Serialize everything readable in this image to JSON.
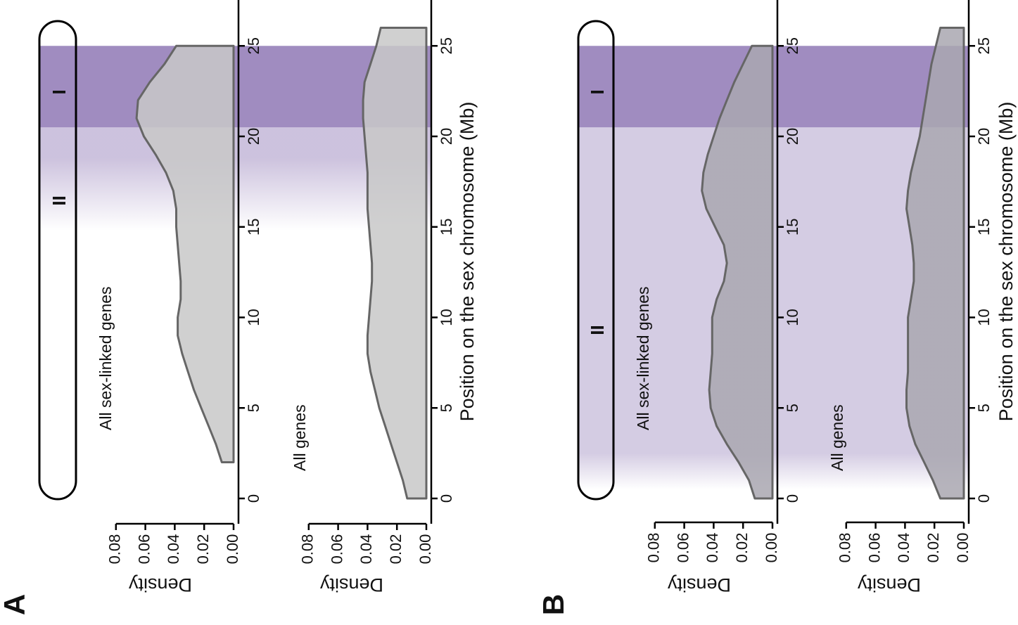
{
  "panels": [
    {
      "id": "A",
      "letter": "A",
      "strata": [
        {
          "label": "I",
          "start": 20.5,
          "end": 25,
          "color": "#8f78b5",
          "opacity": 0.85,
          "fade_start": 20.5,
          "fade_end": 20.5
        },
        {
          "label": "II",
          "start": 14.8,
          "end": 20.5,
          "color": "#8f78b5",
          "opacity": 0.45,
          "fade_start": 14.8,
          "fade_end": 18.8
        }
      ],
      "subplots": [
        {
          "label": "All sex-linked genes",
          "ylabel": "Density",
          "density": [
            [
              2,
              0.008
            ],
            [
              3,
              0.012
            ],
            [
              4,
              0.017
            ],
            [
              5,
              0.022
            ],
            [
              6,
              0.027
            ],
            [
              7,
              0.031
            ],
            [
              8,
              0.035
            ],
            [
              9,
              0.038
            ],
            [
              10,
              0.038
            ],
            [
              11,
              0.036
            ],
            [
              12,
              0.036
            ],
            [
              13,
              0.037
            ],
            [
              14,
              0.038
            ],
            [
              15,
              0.039
            ],
            [
              16,
              0.039
            ],
            [
              17,
              0.041
            ],
            [
              18,
              0.046
            ],
            [
              19,
              0.053
            ],
            [
              20,
              0.061
            ],
            [
              21,
              0.066
            ],
            [
              22,
              0.065
            ],
            [
              23,
              0.057
            ],
            [
              24,
              0.047
            ],
            [
              25,
              0.039
            ]
          ]
        },
        {
          "label": "All genes",
          "ylabel": "Density",
          "density": [
            [
              0,
              0.013
            ],
            [
              1,
              0.016
            ],
            [
              2,
              0.02
            ],
            [
              3,
              0.024
            ],
            [
              4,
              0.028
            ],
            [
              5,
              0.032
            ],
            [
              6,
              0.035
            ],
            [
              7,
              0.038
            ],
            [
              8,
              0.04
            ],
            [
              9,
              0.04
            ],
            [
              10,
              0.039
            ],
            [
              11,
              0.038
            ],
            [
              12,
              0.037
            ],
            [
              13,
              0.037
            ],
            [
              14,
              0.038
            ],
            [
              15,
              0.039
            ],
            [
              16,
              0.04
            ],
            [
              17,
              0.04
            ],
            [
              18,
              0.04
            ],
            [
              19,
              0.041
            ],
            [
              20,
              0.042
            ],
            [
              21,
              0.043
            ],
            [
              22,
              0.043
            ],
            [
              23,
              0.042
            ],
            [
              24,
              0.038
            ],
            [
              25,
              0.034
            ],
            [
              26,
              0.031
            ]
          ]
        }
      ]
    },
    {
      "id": "B",
      "letter": "B",
      "strata": [
        {
          "label": "I",
          "start": 20.5,
          "end": 25,
          "color": "#8f78b5",
          "opacity": 0.85,
          "fade_start": 20.5,
          "fade_end": 20.5
        },
        {
          "label": "II",
          "start": 0.5,
          "end": 20.5,
          "color": "#8f78b5",
          "opacity": 0.38,
          "fade_start": 0.5,
          "fade_end": 2.5
        }
      ],
      "subplots": [
        {
          "label": "All sex-linked genes",
          "ylabel": "Density",
          "density": [
            [
              0,
              0.012
            ],
            [
              1,
              0.016
            ],
            [
              2,
              0.023
            ],
            [
              3,
              0.031
            ],
            [
              4,
              0.038
            ],
            [
              5,
              0.042
            ],
            [
              6,
              0.043
            ],
            [
              7,
              0.042
            ],
            [
              8,
              0.041
            ],
            [
              9,
              0.041
            ],
            [
              10,
              0.041
            ],
            [
              11,
              0.038
            ],
            [
              12,
              0.033
            ],
            [
              13,
              0.031
            ],
            [
              14,
              0.033
            ],
            [
              15,
              0.039
            ],
            [
              16,
              0.045
            ],
            [
              17,
              0.048
            ],
            [
              18,
              0.047
            ],
            [
              19,
              0.044
            ],
            [
              20,
              0.04
            ],
            [
              21,
              0.036
            ],
            [
              22,
              0.031
            ],
            [
              23,
              0.026
            ],
            [
              24,
              0.02
            ],
            [
              25,
              0.014
            ]
          ]
        },
        {
          "label": "All genes",
          "ylabel": "Density",
          "density": [
            [
              0,
              0.016
            ],
            [
              1,
              0.021
            ],
            [
              2,
              0.027
            ],
            [
              3,
              0.033
            ],
            [
              4,
              0.037
            ],
            [
              5,
              0.039
            ],
            [
              6,
              0.039
            ],
            [
              7,
              0.038
            ],
            [
              8,
              0.038
            ],
            [
              9,
              0.038
            ],
            [
              10,
              0.038
            ],
            [
              11,
              0.036
            ],
            [
              12,
              0.034
            ],
            [
              13,
              0.034
            ],
            [
              14,
              0.035
            ],
            [
              15,
              0.037
            ],
            [
              16,
              0.039
            ],
            [
              17,
              0.038
            ],
            [
              18,
              0.036
            ],
            [
              19,
              0.033
            ],
            [
              20,
              0.03
            ],
            [
              21,
              0.028
            ],
            [
              22,
              0.026
            ],
            [
              23,
              0.024
            ],
            [
              24,
              0.022
            ],
            [
              25,
              0.019
            ],
            [
              26,
              0.016
            ]
          ]
        }
      ]
    }
  ],
  "chart_data": [
    {
      "type": "area",
      "panel": "A",
      "title": "All sex-linked genes",
      "xlabel": "Position on the sex chromosome (Mb)",
      "ylabel": "Density",
      "xlim": [
        0,
        26
      ],
      "ylim": [
        0,
        0.08
      ],
      "x_ticks": [
        "0",
        "5",
        "10",
        "15",
        "20",
        "25"
      ],
      "y_ticks": [
        "0.00",
        "0.02",
        "0.04",
        "0.06",
        "0.08"
      ]
    },
    {
      "type": "area",
      "panel": "A",
      "title": "All genes",
      "xlabel": "Position on the sex chromosome (Mb)",
      "ylabel": "Density",
      "xlim": [
        0,
        26
      ],
      "ylim": [
        0,
        0.08
      ],
      "x_ticks": [
        "0",
        "5",
        "10",
        "15",
        "20",
        "25"
      ],
      "y_ticks": [
        "0.00",
        "0.02",
        "0.04",
        "0.06",
        "0.08"
      ]
    },
    {
      "type": "area",
      "panel": "B",
      "title": "All sex-linked genes",
      "xlabel": "Position on the sex chromosome (Mb)",
      "ylabel": "Density",
      "xlim": [
        0,
        26
      ],
      "ylim": [
        0,
        0.08
      ],
      "x_ticks": [
        "0",
        "5",
        "10",
        "15",
        "20",
        "25"
      ],
      "y_ticks": [
        "0.00",
        "0.02",
        "0.04",
        "0.06",
        "0.08"
      ]
    },
    {
      "type": "area",
      "panel": "B",
      "title": "All genes",
      "xlabel": "Position on the sex chromosome (Mb)",
      "ylabel": "Density",
      "xlim": [
        0,
        26
      ],
      "ylim": [
        0,
        0.08
      ],
      "x_ticks": [
        "0",
        "5",
        "10",
        "15",
        "20",
        "25"
      ],
      "y_ticks": [
        "0.00",
        "0.02",
        "0.04",
        "0.06",
        "0.08"
      ]
    }
  ],
  "axis": {
    "xlabel": "Position on the sex chromosome (Mb)",
    "x_ticks": [
      0,
      5,
      10,
      15,
      20,
      25
    ],
    "y_ticks": [
      "0.08",
      "0.06",
      "0.04",
      "0.02",
      "0.00"
    ],
    "xlim": [
      0,
      26
    ],
    "ylim": [
      0,
      0.08
    ]
  },
  "colors": {
    "stratum": "#8f78b5",
    "density_fill_A": "#c8c8c8",
    "density_fill_B": "#a9a7b0",
    "density_stroke": "#666666",
    "axis": "#000000"
  }
}
